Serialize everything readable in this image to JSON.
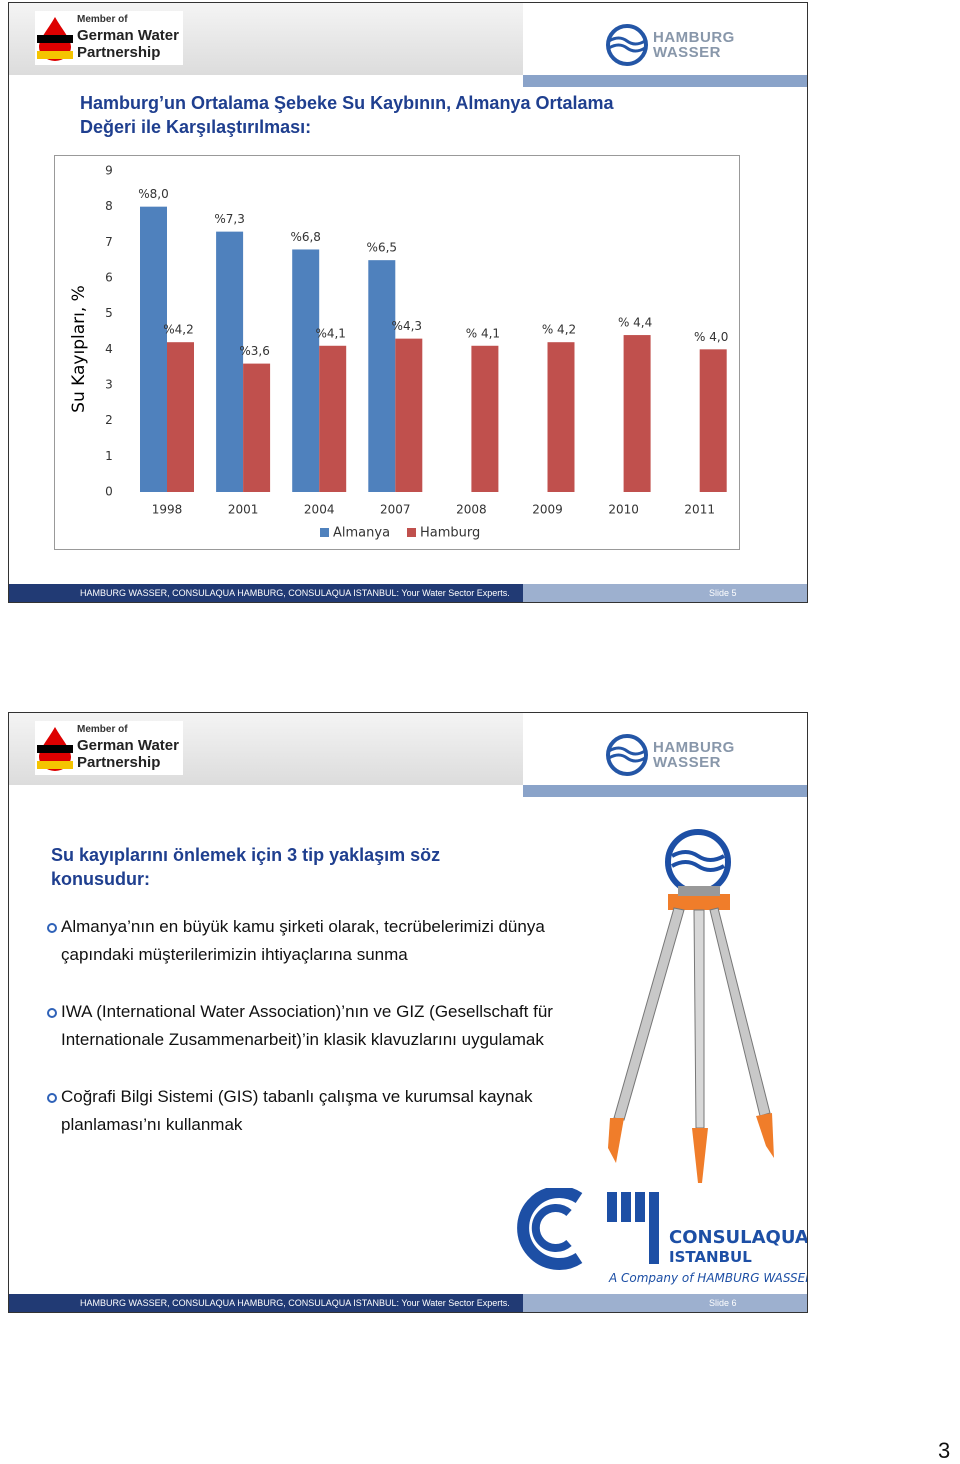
{
  "slides": [
    {
      "logo_left": {
        "line1": "Member of",
        "line2": "German Water",
        "line3": "Partnership"
      },
      "logo_right": {
        "line1": "HAMBURG",
        "line2": "WASSER"
      },
      "title_lines": [
        "Hamburg’un Ortalama Şebeke Su Kaybının, Almanya Ortalama",
        "Değeri ile Karşılaştırılması:"
      ],
      "chart_data": {
        "type": "bar",
        "ylabel": "Su Kayıpları, %",
        "categories": [
          "1998",
          "2001",
          "2004",
          "2007",
          "2008",
          "2009",
          "2010",
          "2011"
        ],
        "series": [
          {
            "name": "Almanya",
            "color": "#4f81bd",
            "values": [
              8.0,
              7.3,
              6.8,
              6.5,
              null,
              null,
              null,
              null
            ],
            "value_labels": [
              "%8,0",
              "%7,3",
              "%6,8",
              "%6,5",
              null,
              null,
              null,
              null
            ]
          },
          {
            "name": "Hamburg",
            "color": "#c0504d",
            "values": [
              4.2,
              3.6,
              4.1,
              4.3,
              4.1,
              4.2,
              4.4,
              4.0
            ],
            "value_labels": [
              "%4,2",
              "%3,6",
              "%4,1",
              "%4,3",
              "% 4,1",
              "% 4,2",
              "% 4,4",
              "% 4,0"
            ]
          }
        ],
        "ylim": [
          0,
          9
        ],
        "yticks": [
          0,
          1,
          2,
          3,
          4,
          5,
          6,
          7,
          8,
          9
        ],
        "grid": false,
        "legend": "bottom"
      },
      "footer": "HAMBURG WASSER, CONSULAQUA HAMBURG, CONSULAQUA ISTANBUL: Your Water Sector Experts.",
      "slide_number": "Slide 5"
    },
    {
      "logo_left": {
        "line1": "Member of",
        "line2": "German Water",
        "line3": "Partnership"
      },
      "logo_right": {
        "line1": "HAMBURG",
        "line2": "WASSER"
      },
      "title_lines": [
        "Su kayıplarını önlemek için 3 tip yaklaşım söz",
        "konusudur:"
      ],
      "bullets": [
        [
          "Almanya’nın en büyük kamu şirketi olarak, tecrübelerimizi dünya",
          "çapındaki müşterilerimizin ihtiyaçlarına sunma"
        ],
        [
          "IWA (International Water Association)’nın  ve GIZ (Gesellschaft für",
          "Internationale Zusammenarbeit)’in klasik klavuzlarını uygulamak"
        ],
        [
          "Coğrafi Bilgi Sistemi (GIS) tabanlı çalışma ve kurumsal kaynak",
          "planlaması’nı kullanmak"
        ]
      ],
      "company_logo": {
        "line1": "CONSULAQUA",
        "line2": "ISTANBUL",
        "tagline": "A Company of HAMBURG WASSER"
      },
      "footer": "HAMBURG WASSER, CONSULAQUA HAMBURG, CONSULAQUA ISTANBUL: Your Water Sector Experts.",
      "slide_number": "Slide 6"
    }
  ],
  "page_number": "3"
}
